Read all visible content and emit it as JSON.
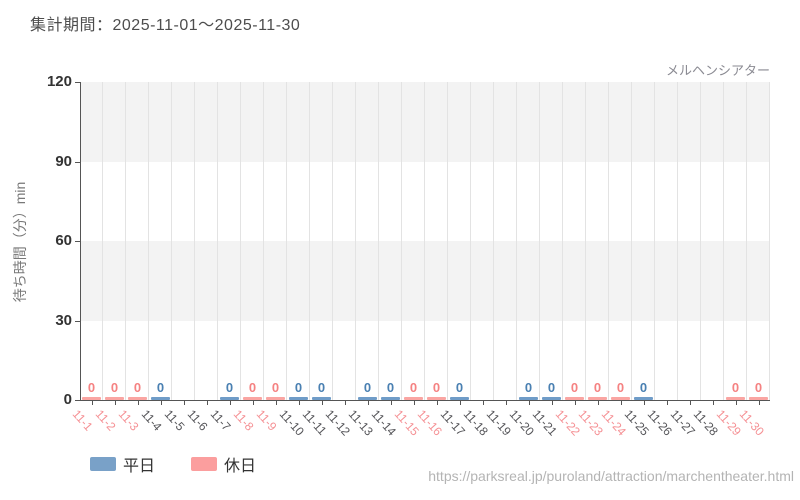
{
  "header": {
    "title": "集計期間：2025-11-01～2025-11-30"
  },
  "footer": {
    "url": "https://parksreal.jp/puroland/attraction/marchentheater.html"
  },
  "legend": {
    "items": [
      {
        "label": "平日",
        "color": "#79a1c8"
      },
      {
        "label": "休日",
        "color": "#fb9e9e"
      }
    ]
  },
  "chart_data": {
    "type": "bar",
    "title": "集計期間：2025-11-01～2025-11-30",
    "series_label": "メルヘンシアター",
    "xlabel": "",
    "ylabel": "待ち時間（分）min",
    "ylim": [
      0,
      120
    ],
    "yticks": [
      0,
      30,
      60,
      90,
      120
    ],
    "grid": "horizontal alternating bands gray/white, vertical light gridlines per day",
    "legend_position": "bottom-left",
    "value_labels_shown": true,
    "categories": [
      "11-1",
      "11-2",
      "11-3",
      "11-4",
      "11-5",
      "11-6",
      "11-7",
      "11-8",
      "11-9",
      "11-10",
      "11-11",
      "11-12",
      "11-13",
      "11-14",
      "11-15",
      "11-16",
      "11-17",
      "11-18",
      "11-19",
      "11-20",
      "11-21",
      "11-22",
      "11-23",
      "11-24",
      "11-25",
      "11-26",
      "11-27",
      "11-28",
      "11-29",
      "11-30"
    ],
    "series": [
      {
        "name": "平日",
        "glyph_color": "#4a80b2",
        "bar_color": "#6f9cc8",
        "values": [
          null,
          null,
          null,
          0,
          null,
          null,
          0,
          null,
          null,
          0,
          0,
          null,
          0,
          0,
          null,
          null,
          0,
          null,
          null,
          0,
          0,
          null,
          null,
          null,
          0,
          null,
          null,
          null,
          null,
          null
        ]
      },
      {
        "name": "休日",
        "glyph_color": "#f58282",
        "bar_color": "#faa5a2",
        "values": [
          0,
          0,
          0,
          null,
          null,
          null,
          null,
          0,
          0,
          null,
          null,
          null,
          null,
          null,
          0,
          0,
          null,
          null,
          null,
          null,
          null,
          0,
          0,
          0,
          null,
          null,
          null,
          null,
          0,
          0
        ]
      }
    ],
    "no_data_categories": [
      "11-5",
      "11-6",
      "11-12",
      "11-18",
      "11-19",
      "11-26",
      "11-27",
      "11-28"
    ],
    "xlabel_color_weekday": "#545458",
    "xlabel_color_holiday": "#f59094",
    "band_color": "#f3f3f3",
    "gridline_color": "#e3e3e3",
    "axis_color": "#555555"
  }
}
